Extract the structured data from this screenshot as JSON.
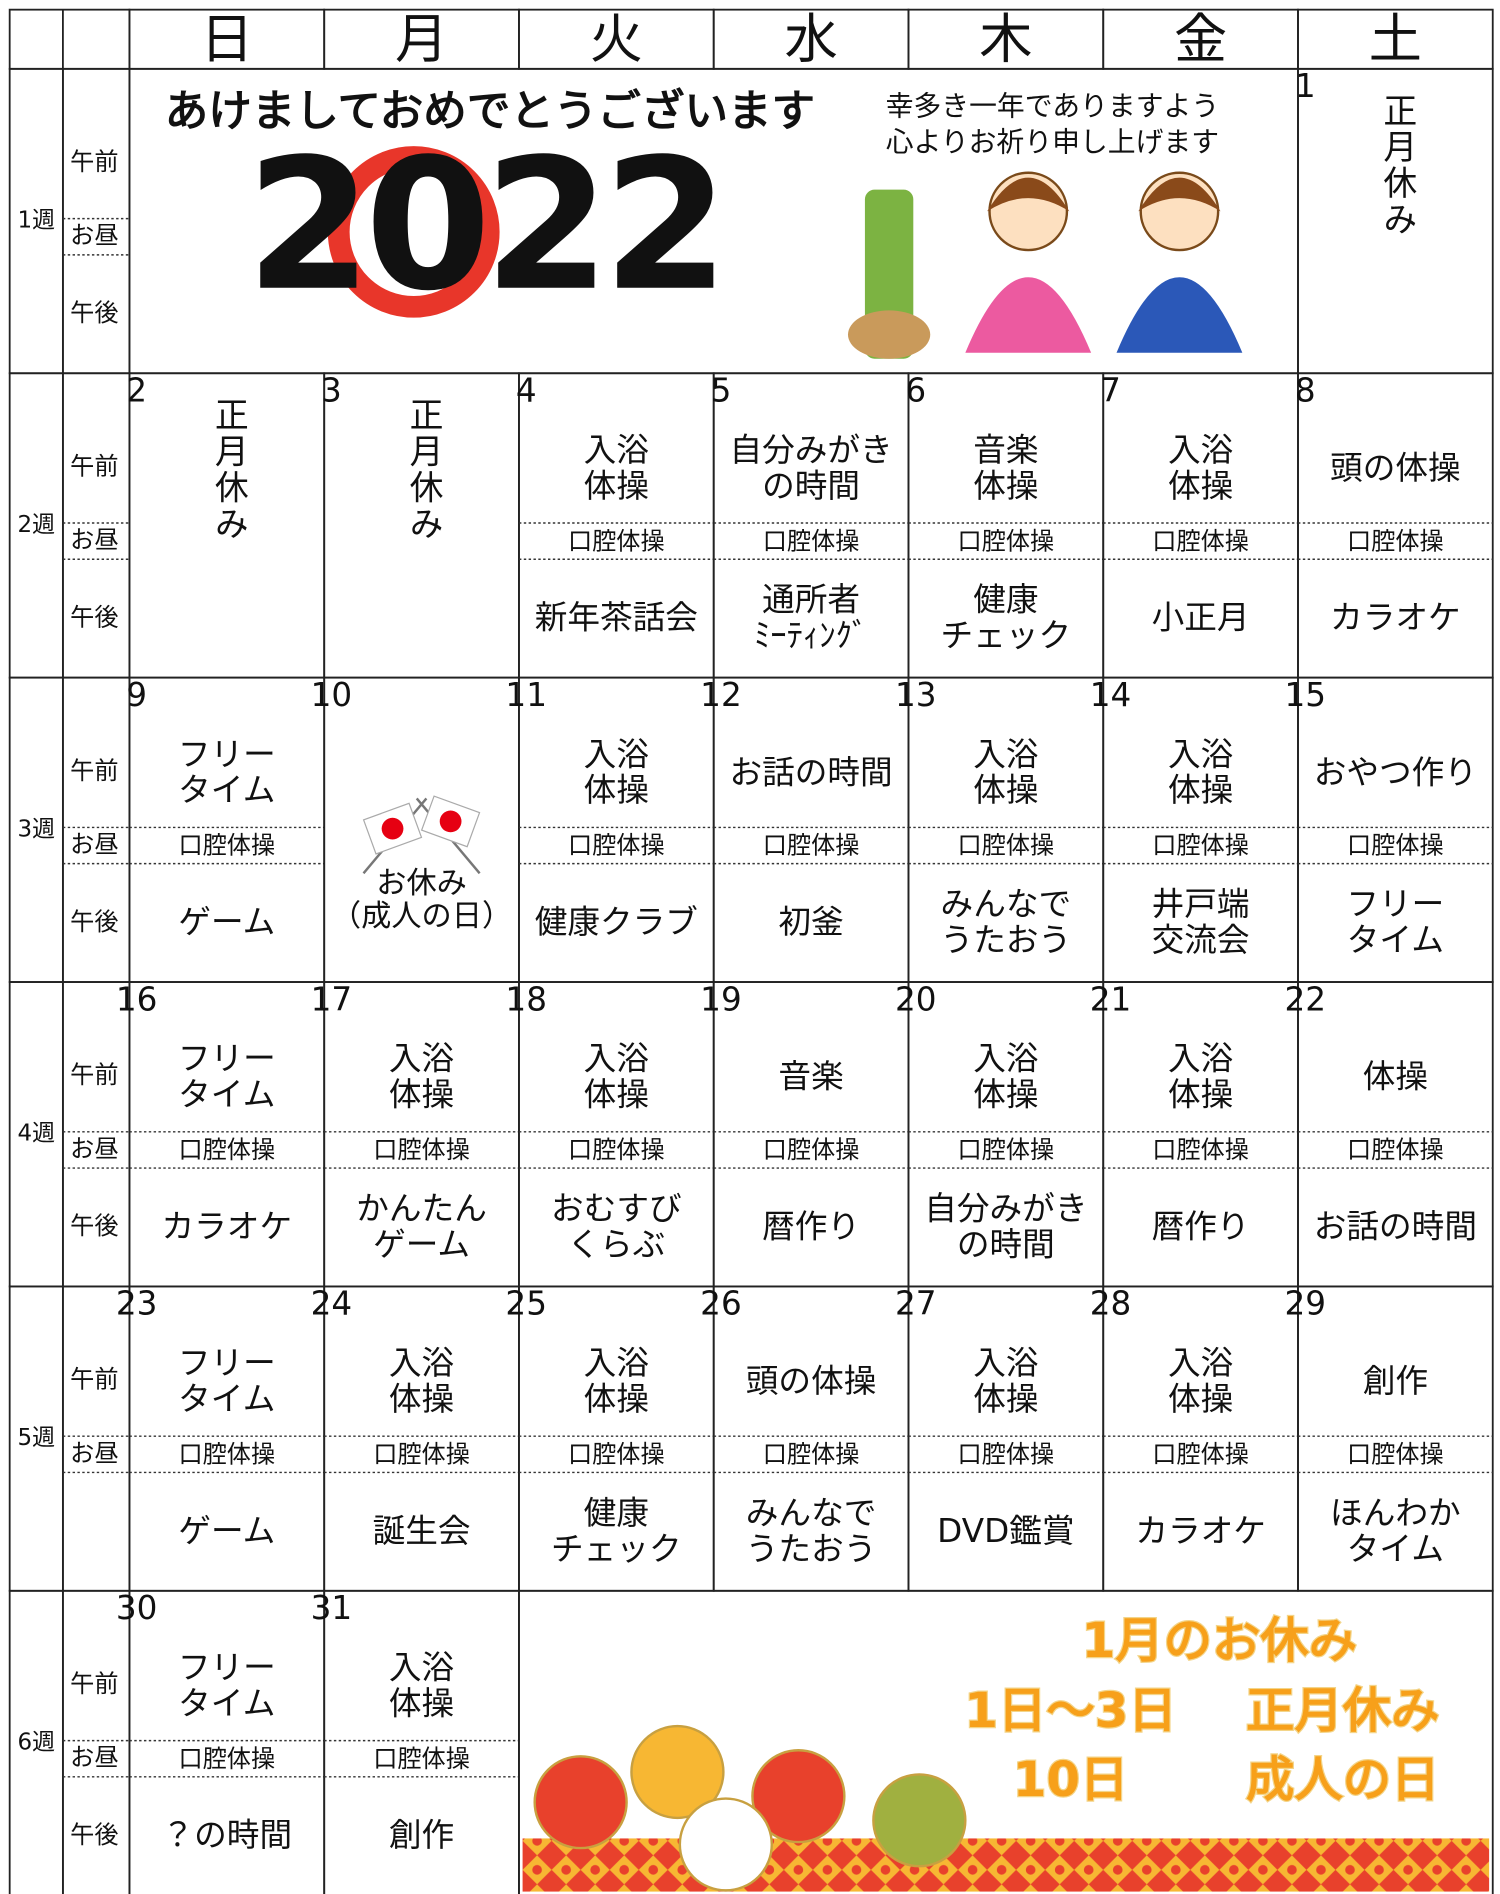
{
  "header": {
    "weekdays": [
      "日",
      "月",
      "火",
      "水",
      "木",
      "金",
      "土"
    ]
  },
  "banner": {
    "greeting": "あけましておめでとうございます",
    "year": "2022",
    "message": [
      "幸多き一年でありますよう",
      "心よりお祈り申し上げます"
    ]
  },
  "notice": {
    "title": "1月のお休み",
    "rows": [
      [
        "1日～3日",
        "正月休み"
      ],
      [
        "10日",
        "成人の日"
      ]
    ]
  },
  "weeks": [
    {
      "label": "1週",
      "slots": {
        "morning": "午前",
        "noon": "お昼",
        "afternoon": "午後"
      },
      "days": [
        {
          "date": 1,
          "holiday": "正月休み"
        }
      ]
    },
    {
      "label": "2週",
      "slots": {
        "morning": "午前",
        "noon": "お昼",
        "afternoon": "午後"
      },
      "days": [
        {
          "date": 2,
          "holiday": "正月休み"
        },
        {
          "date": 3,
          "holiday": "正月休み"
        },
        {
          "date": 4,
          "morning": [
            "入浴",
            "体操"
          ],
          "noon": "口腔体操",
          "afternoon": [
            "新年茶話会"
          ]
        },
        {
          "date": 5,
          "morning": [
            "自分みがき",
            "の時間"
          ],
          "noon": "口腔体操",
          "afternoon": [
            "通所者",
            "ﾐｰﾃｨﾝｸﾞ"
          ]
        },
        {
          "date": 6,
          "morning": [
            "音楽",
            "体操"
          ],
          "noon": "口腔体操",
          "afternoon": [
            "健康",
            "チェック"
          ]
        },
        {
          "date": 7,
          "morning": [
            "入浴",
            "体操"
          ],
          "noon": "口腔体操",
          "afternoon": [
            "小正月"
          ]
        },
        {
          "date": 8,
          "morning": [
            "頭の体操"
          ],
          "noon": "口腔体操",
          "afternoon": [
            "カラオケ"
          ]
        }
      ]
    },
    {
      "label": "3週",
      "slots": {
        "morning": "午前",
        "noon": "お昼",
        "afternoon": "午後"
      },
      "days": [
        {
          "date": 9,
          "morning": [
            "フリー",
            "タイム"
          ],
          "noon": "口腔体操",
          "afternoon": [
            "ゲーム"
          ]
        },
        {
          "date": 10,
          "closed": [
            "お休み",
            "（成人の日）"
          ]
        },
        {
          "date": 11,
          "morning": [
            "入浴",
            "体操"
          ],
          "noon": "口腔体操",
          "afternoon": [
            "健康クラブ"
          ]
        },
        {
          "date": 12,
          "morning": [
            "お話の時間"
          ],
          "noon": "口腔体操",
          "afternoon": [
            "初釜"
          ]
        },
        {
          "date": 13,
          "morning": [
            "入浴",
            "体操"
          ],
          "noon": "口腔体操",
          "afternoon": [
            "みんなで",
            "うたおう"
          ]
        },
        {
          "date": 14,
          "morning": [
            "入浴",
            "体操"
          ],
          "noon": "口腔体操",
          "afternoon": [
            "井戸端",
            "交流会"
          ]
        },
        {
          "date": 15,
          "morning": [
            "おやつ作り"
          ],
          "noon": "口腔体操",
          "afternoon": [
            "フリー",
            "タイム"
          ]
        }
      ]
    },
    {
      "label": "4週",
      "slots": {
        "morning": "午前",
        "noon": "お昼",
        "afternoon": "午後"
      },
      "days": [
        {
          "date": 16,
          "morning": [
            "フリー",
            "タイム"
          ],
          "noon": "口腔体操",
          "afternoon": [
            "カラオケ"
          ]
        },
        {
          "date": 17,
          "morning": [
            "入浴",
            "体操"
          ],
          "noon": "口腔体操",
          "afternoon": [
            "かんたん",
            "ゲーム"
          ]
        },
        {
          "date": 18,
          "morning": [
            "入浴",
            "体操"
          ],
          "noon": "口腔体操",
          "afternoon": [
            "おむすび",
            "くらぶ"
          ]
        },
        {
          "date": 19,
          "morning": [
            "音楽"
          ],
          "noon": "口腔体操",
          "afternoon": [
            "暦作り"
          ]
        },
        {
          "date": 20,
          "morning": [
            "入浴",
            "体操"
          ],
          "noon": "口腔体操",
          "afternoon": [
            "自分みがき",
            "の時間"
          ]
        },
        {
          "date": 21,
          "morning": [
            "入浴",
            "体操"
          ],
          "noon": "口腔体操",
          "afternoon": [
            "暦作り"
          ]
        },
        {
          "date": 22,
          "morning": [
            "体操"
          ],
          "noon": "口腔体操",
          "afternoon": [
            "お話の時間"
          ]
        }
      ]
    },
    {
      "label": "5週",
      "slots": {
        "morning": "午前",
        "noon": "お昼"
      },
      "days": [
        {
          "date": 23,
          "morning": [
            "フリー",
            "タイム"
          ],
          "noon": "口腔体操",
          "afternoon": [
            "ゲーム"
          ]
        },
        {
          "date": 24,
          "morning": [
            "入浴",
            "体操"
          ],
          "noon": "口腔体操",
          "afternoon": [
            "誕生会"
          ]
        },
        {
          "date": 25,
          "morning": [
            "入浴",
            "体操"
          ],
          "noon": "口腔体操",
          "afternoon": [
            "健康",
            "チェック"
          ]
        },
        {
          "date": 26,
          "morning": [
            "頭の体操"
          ],
          "noon": "口腔体操",
          "afternoon": [
            "みんなで",
            "うたおう"
          ]
        },
        {
          "date": 27,
          "morning": [
            "入浴",
            "体操"
          ],
          "noon": "口腔体操",
          "afternoon": [
            "DVD鑑賞"
          ]
        },
        {
          "date": 28,
          "morning": [
            "入浴",
            "体操"
          ],
          "noon": "口腔体操",
          "afternoon": [
            "カラオケ"
          ]
        },
        {
          "date": 29,
          "morning": [
            "創作"
          ],
          "noon": "口腔体操",
          "afternoon": [
            "ほんわか",
            "タイム"
          ]
        }
      ]
    },
    {
      "label": "6週",
      "slots": {
        "morning": "午前",
        "noon": "お昼",
        "afternoon": "午後"
      },
      "days": [
        {
          "date": 30,
          "morning": [
            "フリー",
            "タイム"
          ],
          "noon": "口腔体操",
          "afternoon": [
            "？の時間"
          ]
        },
        {
          "date": 31,
          "morning": [
            "入浴",
            "体操"
          ],
          "noon": "口腔体操",
          "afternoon": [
            "創作"
          ]
        }
      ]
    }
  ]
}
